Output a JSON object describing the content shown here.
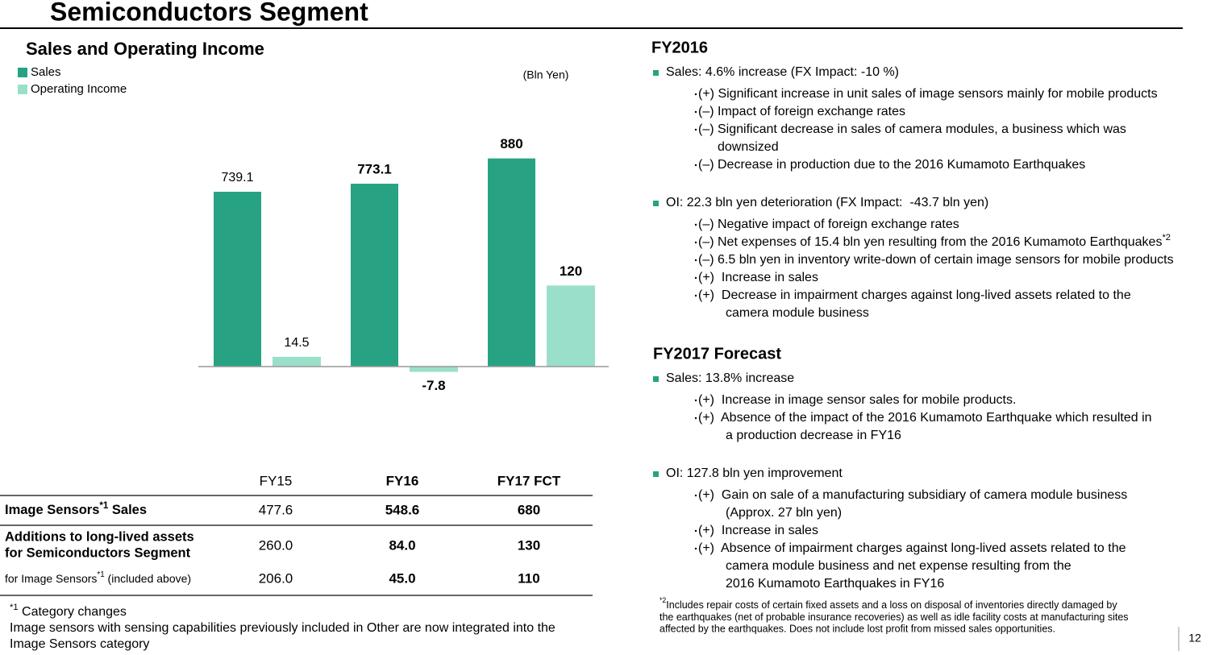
{
  "header": {
    "title": "Semiconductors Segment"
  },
  "chart_data": {
    "type": "bar",
    "title": "Sales and Operating Income",
    "unit": "(Bln Yen)",
    "categories": [
      "FY15",
      "FY16",
      "FY17 FCT"
    ],
    "series": [
      {
        "name": "Sales",
        "color": "#27a383",
        "values": [
          739.1,
          773.1,
          880
        ]
      },
      {
        "name": "Operating Income",
        "color": "#9adfca",
        "values": [
          14.5,
          -7.8,
          120
        ],
        "axis": "y2"
      }
    ],
    "ylim": [
      -100,
      1000
    ],
    "y2lim": [
      -35,
      350
    ],
    "legend": "upper left"
  },
  "table": {
    "rows": [
      {
        "label": {
          "text": "Image Sensors",
          "sup": "*1",
          "after": " Sales"
        },
        "values": [
          "477.6",
          "548.6",
          "680"
        ]
      },
      {
        "label": {
          "lines": [
            "Additions to long-lived assets",
            "for Semiconductors Segment"
          ]
        },
        "values": [
          "260.0",
          "84.0",
          "130"
        ]
      },
      {
        "label": {
          "text": "for Image Sensors",
          "sup": "*1",
          "after": " (included above)"
        },
        "values": [
          "206.0",
          "45.0",
          "110"
        ]
      }
    ]
  },
  "commentary": {
    "sections": [
      {
        "heading": "FY2016",
        "bullets": [
          {
            "text": "Sales: 4.6% increase (FX Impact: -10 %)",
            "items": [
              {
                "lines": [
                  "(+) Significant increase in unit sales of image sensors mainly for mobile products"
                ]
              },
              {
                "lines": [
                  "(–) Impact of foreign exchange rates"
                ]
              },
              {
                "lines": [
                  "(–) Significant decrease in sales of camera modules, a business which was",
                  "downsized"
                ]
              },
              {
                "lines": [
                  "(–) Decrease in production due to the 2016 Kumamoto Earthquakes"
                ]
              }
            ]
          },
          {
            "text": "OI: 22.3 bln yen deterioration (FX Impact:  -43.7 bln yen)",
            "items": [
              {
                "lines": [
                  "(–) Negative impact of foreign exchange rates"
                ]
              },
              {
                "lines": [
                  "(–) Net expenses of 15.4 bln yen resulting from the 2016 Kumamoto Earthquakes"
                ],
                "sup": "*2"
              },
              {
                "lines": [
                  "(–) 6.5 bln yen in inventory write-down of certain image sensors for mobile products"
                ]
              },
              {
                "lines": [
                  "(+)  Increase in sales"
                ]
              },
              {
                "lines": [
                  "(+)  Decrease in impairment charges against long-lived assets related to the",
                  "camera module business"
                ]
              }
            ]
          }
        ]
      },
      {
        "heading": "FY2017 Forecast",
        "bullets": [
          {
            "text": "Sales: 13.8% increase",
            "items": [
              {
                "lines": [
                  "(+)  Increase in image sensor sales for mobile products."
                ]
              },
              {
                "lines": [
                  "(+)  Absence of the impact of the 2016 Kumamoto Earthquake which resulted in",
                  "a production decrease in FY16"
                ]
              }
            ]
          },
          {
            "text": "OI: 127.8 bln yen improvement",
            "items": [
              {
                "lines": [
                  "(+)  Gain on sale of a manufacturing subsidiary of camera module business",
                  "(Approx. 27 bln yen)"
                ]
              },
              {
                "lines": [
                  "(+)  Increase in sales"
                ]
              },
              {
                "lines": [
                  "(+)  Absence of impairment charges against long-lived assets related to the",
                  "camera module business and net expense resulting from the",
                  "2016 Kumamoto Earthquakes in FY16"
                ]
              }
            ]
          }
        ]
      }
    ]
  },
  "footnotes": {
    "note1": {
      "sup": "*1",
      "title": " Category changes",
      "lines": [
        "Image sensors with sensing capabilities previously included in Other are now integrated into the",
        "Image Sensors category"
      ]
    },
    "note2": {
      "sup": "*2",
      "lines": [
        "Includes repair costs of certain fixed assets and a loss on disposal of inventories directly damaged by",
        "the earthquakes (net of probable insurance recoveries) as well as idle facility costs at manufacturing sites",
        "affected by the earthquakes. Does not include lost profit from missed sales opportunities."
      ]
    }
  },
  "page_number": "12"
}
